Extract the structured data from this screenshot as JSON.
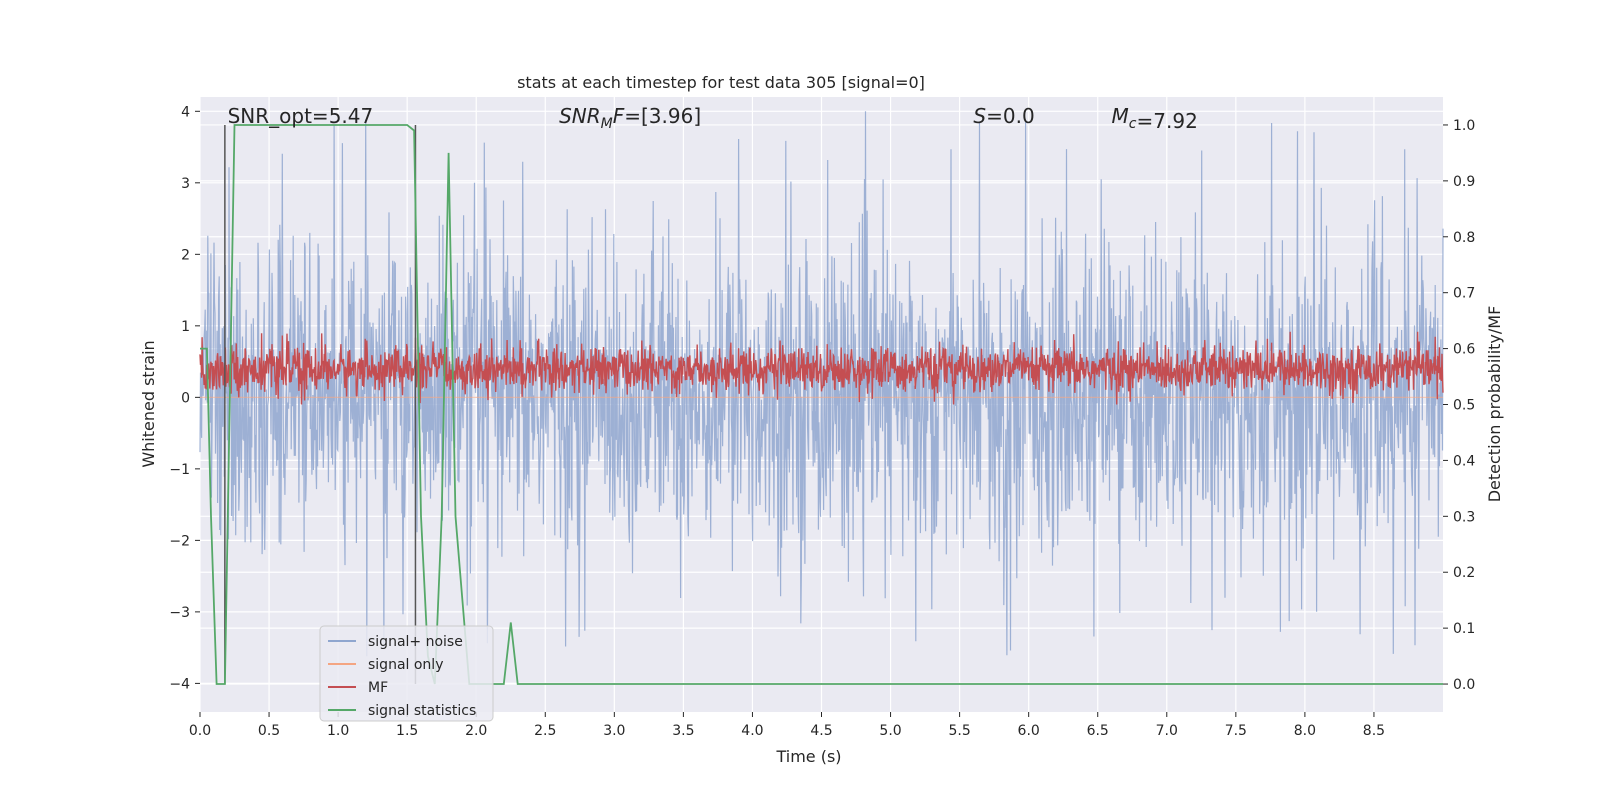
{
  "chart_data": {
    "type": "line",
    "title": "stats at each timestep for test data 305 [signal=0]",
    "xlabel": "Time (s)",
    "ylabel_left": "Whitened strain",
    "ylabel_right": "Detection probability/MF",
    "xlim": [
      0.0,
      9.0
    ],
    "ylim_left": [
      -4.4,
      4.2
    ],
    "ylim_right": [
      -0.05,
      1.05
    ],
    "xticks": [
      0.0,
      0.5,
      1.0,
      1.5,
      2.0,
      2.5,
      3.0,
      3.5,
      4.0,
      4.5,
      5.0,
      5.5,
      6.0,
      6.5,
      7.0,
      7.5,
      8.0,
      8.5
    ],
    "xtick_labels": [
      "0.0",
      "0.5",
      "1.0",
      "1.5",
      "2.0",
      "2.5",
      "3.0",
      "3.5",
      "4.0",
      "4.5",
      "5.0",
      "5.5",
      "6.0",
      "6.5",
      "7.0",
      "7.5",
      "8.0",
      "8.5"
    ],
    "yticks_left": [
      -4,
      -3,
      -2,
      -1,
      0,
      1,
      2,
      3,
      4
    ],
    "ytick_labels_left": [
      "−4",
      "−3",
      "−2",
      "−1",
      "0",
      "1",
      "2",
      "3",
      "4"
    ],
    "yticks_right": [
      0.0,
      0.1,
      0.2,
      0.3,
      0.4,
      0.5,
      0.6,
      0.7,
      0.8,
      0.9,
      1.0
    ],
    "ytick_labels_right": [
      "0.0",
      "0.1",
      "0.2",
      "0.3",
      "0.4",
      "0.5",
      "0.6",
      "0.7",
      "0.8",
      "0.9",
      "1.0"
    ],
    "grid": true,
    "legend_position": "lower-left",
    "series": [
      {
        "name": "signal+ noise",
        "color": "#8fa6cf",
        "axis": "left",
        "kind": "noise",
        "range": [
          -4.0,
          4.0
        ],
        "typical": [
          -2.2,
          2.6
        ]
      },
      {
        "name": "signal only",
        "color": "#f4a582",
        "axis": "left",
        "kind": "flat",
        "value": 0.0
      },
      {
        "name": "MF",
        "color": "#c44e52",
        "axis": "right",
        "kind": "noise",
        "range": [
          0.5,
          0.63
        ],
        "typical": [
          0.52,
          0.6
        ]
      },
      {
        "name": "signal statistics",
        "color": "#55a868",
        "axis": "right",
        "kind": "line",
        "x": [
          0.0,
          0.05,
          0.08,
          0.12,
          0.18,
          0.25,
          1.5,
          1.55,
          1.6,
          1.65,
          1.7,
          1.75,
          1.8,
          1.85,
          1.95,
          2.0,
          2.1,
          2.2,
          2.25,
          2.3,
          2.35,
          2.4,
          9.0
        ],
        "y": [
          0.6,
          0.6,
          0.3,
          0.0,
          0.0,
          1.0,
          1.0,
          0.99,
          0.3,
          0.05,
          0.0,
          0.3,
          0.95,
          0.3,
          0.0,
          0.0,
          0.0,
          0.0,
          0.11,
          0.0,
          0.0,
          0.0,
          0.0
        ]
      }
    ],
    "vlines": [
      0.18,
      1.56
    ],
    "annotations": [
      {
        "id": "snr-opt",
        "text": "SNR_opt=5.47",
        "x": 0.2
      },
      {
        "id": "snr-mf",
        "text": "=[3.96]",
        "x": 2.6,
        "base": "SNR",
        "sub": "M",
        "tail": "F"
      },
      {
        "id": "s-value",
        "text": "=0.0",
        "x": 5.6,
        "base": "S"
      },
      {
        "id": "mc-value",
        "text": "=7.92",
        "x": 6.6,
        "base": "M",
        "sub": "c"
      }
    ]
  }
}
